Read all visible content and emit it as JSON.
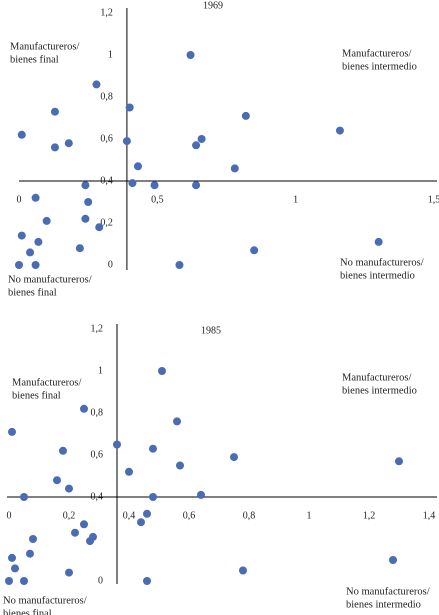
{
  "chart_data": [
    {
      "type": "scatter",
      "title": "1969",
      "quadrant_labels": {
        "top_left": [
          "Manufactureros/",
          "bienes final"
        ],
        "top_right": [
          "Manufactureros/",
          "bienes intermedio"
        ],
        "bottom_left": [
          "No manufactureros/",
          "bienes final"
        ],
        "bottom_right": [
          "No manufactureros/",
          "bienes intermedio"
        ]
      },
      "x": [
        0.62,
        0.28,
        0.4,
        0.13,
        0.82,
        1.16,
        0.01,
        0.66,
        0.39,
        0.64,
        0.18,
        0.13,
        0.43,
        0.78,
        0.24,
        0.41,
        0.49,
        0.64,
        0.06,
        0.25,
        0.1,
        0.24,
        0.29,
        0.01,
        0.07,
        1.3,
        0.22,
        0.04,
        0.85,
        0.0,
        0.06,
        0.58
      ],
      "values": [
        1.0,
        0.86,
        0.75,
        0.73,
        0.71,
        0.64,
        0.62,
        0.6,
        0.59,
        0.57,
        0.58,
        0.56,
        0.47,
        0.46,
        0.38,
        0.39,
        0.38,
        0.38,
        0.32,
        0.3,
        0.21,
        0.22,
        0.18,
        0.14,
        0.11,
        0.11,
        0.08,
        0.06,
        0.07,
        0.0,
        0.0,
        0.0
      ],
      "color": "#4a6bb5",
      "xlim": [
        0,
        1.5
      ],
      "ylim": [
        0,
        1.2
      ],
      "axis_cross": [
        0.39,
        0.4
      ],
      "xticks": [
        0,
        {
          "value": 0.5,
          "label": "0,5"
        },
        1,
        {
          "value": 1.5,
          "label": "1,5"
        }
      ],
      "yticks": [
        0,
        {
          "value": 0.2,
          "label": "0,2"
        },
        {
          "value": 0.4,
          "label": "0,4"
        },
        {
          "value": 0.6,
          "label": "0,6"
        },
        {
          "value": 0.8,
          "label": "0,8"
        },
        1,
        {
          "value": 1.2,
          "label": "1,2"
        }
      ]
    },
    {
      "type": "scatter",
      "title": "1985",
      "quadrant_labels": {
        "top_left": [
          "Manufactureros/",
          "bienes final"
        ],
        "top_right": [
          "Manufactureros/",
          "bienes intermedio"
        ],
        "bottom_left": [
          "No manufactureros/",
          "bienes final"
        ],
        "bottom_right": [
          "No manufactureros/",
          "bienes intermedio"
        ]
      },
      "x": [
        0.51,
        0.25,
        0.56,
        0.01,
        0.36,
        0.18,
        0.48,
        0.75,
        1.3,
        0.57,
        0.4,
        0.16,
        0.2,
        0.05,
        0.48,
        0.64,
        0.46,
        0.44,
        0.25,
        0.22,
        0.28,
        0.27,
        0.08,
        0.07,
        0.01,
        0.02,
        1.28,
        0.78,
        0.2,
        0.0,
        0.05,
        0.46
      ],
      "values": [
        1.0,
        0.82,
        0.76,
        0.71,
        0.65,
        0.62,
        0.63,
        0.59,
        0.57,
        0.55,
        0.52,
        0.48,
        0.44,
        0.4,
        0.4,
        0.41,
        0.32,
        0.28,
        0.27,
        0.23,
        0.21,
        0.19,
        0.2,
        0.13,
        0.11,
        0.06,
        0.1,
        0.05,
        0.04,
        0.0,
        0.0,
        0.0
      ],
      "color": "#4a6bb5",
      "xlim": [
        0,
        1.4
      ],
      "ylim": [
        0,
        1.2
      ],
      "axis_cross": [
        0.36,
        0.4
      ],
      "xticks": [
        0,
        {
          "value": 0.2,
          "label": "0,2"
        },
        {
          "value": 0.4,
          "label": "0,4"
        },
        {
          "value": 0.6,
          "label": "0,6"
        },
        {
          "value": 0.8,
          "label": "0,8"
        },
        1,
        {
          "value": 1.2,
          "label": "1,2"
        },
        {
          "value": 1.4,
          "label": "1,4"
        }
      ],
      "yticks": [
        0,
        {
          "value": 0.4,
          "label": "0,4"
        },
        {
          "value": 0.6,
          "label": "0,6"
        },
        {
          "value": 0.8,
          "label": "0,8"
        },
        1,
        {
          "value": 1.2,
          "label": "1,2"
        }
      ]
    }
  ]
}
